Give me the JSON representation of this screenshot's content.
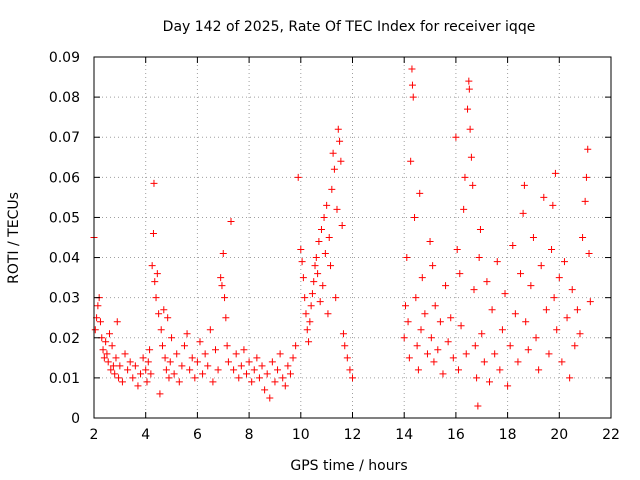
{
  "chart_data": {
    "type": "scatter",
    "title": "Day 142 of 2025, Rate Of TEC Index for receiver iqqe",
    "xlabel": "GPS time / hours",
    "ylabel": "ROTI / TECUs",
    "xlim": [
      2,
      22
    ],
    "ylim": [
      0,
      0.09
    ],
    "x_ticks": [
      2,
      4,
      6,
      8,
      10,
      12,
      14,
      16,
      18,
      20,
      22
    ],
    "x_tick_labels": [
      "2",
      "4",
      "6",
      "8",
      "10",
      "12",
      "14",
      "16",
      "18",
      "20",
      "22"
    ],
    "y_ticks": [
      0,
      0.01,
      0.02,
      0.03,
      0.04,
      0.05,
      0.06,
      0.07,
      0.08,
      0.09
    ],
    "y_tick_labels": [
      "0",
      "0.01",
      "0.02",
      "0.03",
      "0.04",
      "0.05",
      "0.06",
      "0.07",
      "0.08",
      "0.09"
    ],
    "grid": true,
    "marker": "+",
    "color": "#ff0000",
    "series": [
      {
        "name": "ROTI",
        "points": [
          [
            2.0,
            0.045
          ],
          [
            2.05,
            0.022
          ],
          [
            2.1,
            0.025
          ],
          [
            2.15,
            0.028
          ],
          [
            2.2,
            0.03
          ],
          [
            2.25,
            0.024
          ],
          [
            2.3,
            0.02
          ],
          [
            2.35,
            0.017
          ],
          [
            2.4,
            0.015
          ],
          [
            2.45,
            0.019
          ],
          [
            2.5,
            0.016
          ],
          [
            2.55,
            0.014
          ],
          [
            2.6,
            0.021
          ],
          [
            2.65,
            0.012
          ],
          [
            2.7,
            0.018
          ],
          [
            2.75,
            0.013
          ],
          [
            2.8,
            0.011
          ],
          [
            2.85,
            0.015
          ],
          [
            2.9,
            0.024
          ],
          [
            2.95,
            0.01
          ],
          [
            3.0,
            0.013
          ],
          [
            3.1,
            0.009
          ],
          [
            3.2,
            0.016
          ],
          [
            3.3,
            0.012
          ],
          [
            3.4,
            0.014
          ],
          [
            3.5,
            0.01
          ],
          [
            3.6,
            0.013
          ],
          [
            3.7,
            0.008
          ],
          [
            3.8,
            0.011
          ],
          [
            3.9,
            0.015
          ],
          [
            4.0,
            0.012
          ],
          [
            4.05,
            0.009
          ],
          [
            4.1,
            0.014
          ],
          [
            4.15,
            0.017
          ],
          [
            4.2,
            0.011
          ],
          [
            4.25,
            0.038
          ],
          [
            4.3,
            0.046
          ],
          [
            4.32,
            0.0585
          ],
          [
            4.35,
            0.034
          ],
          [
            4.4,
            0.03
          ],
          [
            4.45,
            0.036
          ],
          [
            4.5,
            0.026
          ],
          [
            4.55,
            0.006
          ],
          [
            4.6,
            0.022
          ],
          [
            4.65,
            0.018
          ],
          [
            4.7,
            0.027
          ],
          [
            4.75,
            0.015
          ],
          [
            4.8,
            0.012
          ],
          [
            4.85,
            0.025
          ],
          [
            4.9,
            0.01
          ],
          [
            4.95,
            0.014
          ],
          [
            5.0,
            0.02
          ],
          [
            5.1,
            0.011
          ],
          [
            5.2,
            0.016
          ],
          [
            5.3,
            0.009
          ],
          [
            5.4,
            0.013
          ],
          [
            5.5,
            0.018
          ],
          [
            5.6,
            0.021
          ],
          [
            5.7,
            0.012
          ],
          [
            5.8,
            0.015
          ],
          [
            5.9,
            0.01
          ],
          [
            6.0,
            0.014
          ],
          [
            6.1,
            0.019
          ],
          [
            6.2,
            0.011
          ],
          [
            6.3,
            0.016
          ],
          [
            6.4,
            0.013
          ],
          [
            6.5,
            0.022
          ],
          [
            6.6,
            0.009
          ],
          [
            6.7,
            0.017
          ],
          [
            6.8,
            0.012
          ],
          [
            6.9,
            0.035
          ],
          [
            6.95,
            0.033
          ],
          [
            7.0,
            0.041
          ],
          [
            7.05,
            0.03
          ],
          [
            7.1,
            0.025
          ],
          [
            7.15,
            0.018
          ],
          [
            7.2,
            0.014
          ],
          [
            7.3,
            0.049
          ],
          [
            7.4,
            0.012
          ],
          [
            7.5,
            0.016
          ],
          [
            7.6,
            0.01
          ],
          [
            7.7,
            0.013
          ],
          [
            7.8,
            0.017
          ],
          [
            7.9,
            0.011
          ],
          [
            8.0,
            0.014
          ],
          [
            8.1,
            0.009
          ],
          [
            8.2,
            0.012
          ],
          [
            8.3,
            0.015
          ],
          [
            8.4,
            0.01
          ],
          [
            8.5,
            0.013
          ],
          [
            8.6,
            0.007
          ],
          [
            8.7,
            0.011
          ],
          [
            8.8,
            0.005
          ],
          [
            8.9,
            0.014
          ],
          [
            9.0,
            0.009
          ],
          [
            9.1,
            0.012
          ],
          [
            9.2,
            0.016
          ],
          [
            9.3,
            0.01
          ],
          [
            9.4,
            0.008
          ],
          [
            9.5,
            0.013
          ],
          [
            9.6,
            0.011
          ],
          [
            9.7,
            0.015
          ],
          [
            9.8,
            0.018
          ],
          [
            9.9,
            0.06
          ],
          [
            10.0,
            0.042
          ],
          [
            10.05,
            0.039
          ],
          [
            10.1,
            0.035
          ],
          [
            10.15,
            0.03
          ],
          [
            10.2,
            0.026
          ],
          [
            10.25,
            0.022
          ],
          [
            10.3,
            0.019
          ],
          [
            10.35,
            0.024
          ],
          [
            10.4,
            0.028
          ],
          [
            10.45,
            0.031
          ],
          [
            10.5,
            0.034
          ],
          [
            10.55,
            0.038
          ],
          [
            10.6,
            0.04
          ],
          [
            10.65,
            0.036
          ],
          [
            10.7,
            0.044
          ],
          [
            10.75,
            0.029
          ],
          [
            10.8,
            0.047
          ],
          [
            10.85,
            0.033
          ],
          [
            10.9,
            0.05
          ],
          [
            10.95,
            0.041
          ],
          [
            11.0,
            0.053
          ],
          [
            11.05,
            0.026
          ],
          [
            11.1,
            0.045
          ],
          [
            11.15,
            0.038
          ],
          [
            11.2,
            0.057
          ],
          [
            11.25,
            0.066
          ],
          [
            11.3,
            0.062
          ],
          [
            11.35,
            0.03
          ],
          [
            11.4,
            0.052
          ],
          [
            11.45,
            0.072
          ],
          [
            11.5,
            0.069
          ],
          [
            11.55,
            0.064
          ],
          [
            11.6,
            0.048
          ],
          [
            11.65,
            0.021
          ],
          [
            11.7,
            0.018
          ],
          [
            11.8,
            0.015
          ],
          [
            11.9,
            0.012
          ],
          [
            12.0,
            0.01
          ],
          [
            14.0,
            0.02
          ],
          [
            14.05,
            0.028
          ],
          [
            14.1,
            0.04
          ],
          [
            14.15,
            0.024
          ],
          [
            14.2,
            0.015
          ],
          [
            14.25,
            0.064
          ],
          [
            14.3,
            0.087
          ],
          [
            14.32,
            0.083
          ],
          [
            14.35,
            0.08
          ],
          [
            14.4,
            0.05
          ],
          [
            14.45,
            0.03
          ],
          [
            14.5,
            0.018
          ],
          [
            14.55,
            0.012
          ],
          [
            14.6,
            0.056
          ],
          [
            14.65,
            0.022
          ],
          [
            14.7,
            0.035
          ],
          [
            14.8,
            0.026
          ],
          [
            14.9,
            0.016
          ],
          [
            15.0,
            0.044
          ],
          [
            15.05,
            0.02
          ],
          [
            15.1,
            0.038
          ],
          [
            15.15,
            0.014
          ],
          [
            15.2,
            0.028
          ],
          [
            15.3,
            0.017
          ],
          [
            15.4,
            0.024
          ],
          [
            15.5,
            0.011
          ],
          [
            15.6,
            0.033
          ],
          [
            15.7,
            0.019
          ],
          [
            15.8,
            0.025
          ],
          [
            15.9,
            0.015
          ],
          [
            16.0,
            0.07
          ],
          [
            16.05,
            0.042
          ],
          [
            16.1,
            0.012
          ],
          [
            16.15,
            0.036
          ],
          [
            16.2,
            0.023
          ],
          [
            16.3,
            0.052
          ],
          [
            16.35,
            0.06
          ],
          [
            16.4,
            0.016
          ],
          [
            16.45,
            0.077
          ],
          [
            16.5,
            0.084
          ],
          [
            16.52,
            0.082
          ],
          [
            16.55,
            0.072
          ],
          [
            16.6,
            0.065
          ],
          [
            16.65,
            0.058
          ],
          [
            16.7,
            0.032
          ],
          [
            16.75,
            0.018
          ],
          [
            16.8,
            0.01
          ],
          [
            16.85,
            0.003
          ],
          [
            16.9,
            0.04
          ],
          [
            16.95,
            0.047
          ],
          [
            17.0,
            0.021
          ],
          [
            17.1,
            0.014
          ],
          [
            17.2,
            0.034
          ],
          [
            17.3,
            0.009
          ],
          [
            17.4,
            0.027
          ],
          [
            17.5,
            0.016
          ],
          [
            17.6,
            0.039
          ],
          [
            17.7,
            0.012
          ],
          [
            17.8,
            0.022
          ],
          [
            17.9,
            0.031
          ],
          [
            18.0,
            0.008
          ],
          [
            18.1,
            0.018
          ],
          [
            18.2,
            0.043
          ],
          [
            18.3,
            0.026
          ],
          [
            18.4,
            0.014
          ],
          [
            18.5,
            0.036
          ],
          [
            18.6,
            0.051
          ],
          [
            18.65,
            0.058
          ],
          [
            18.7,
            0.024
          ],
          [
            18.8,
            0.017
          ],
          [
            18.9,
            0.033
          ],
          [
            19.0,
            0.045
          ],
          [
            19.1,
            0.02
          ],
          [
            19.2,
            0.012
          ],
          [
            19.3,
            0.038
          ],
          [
            19.4,
            0.055
          ],
          [
            19.5,
            0.027
          ],
          [
            19.6,
            0.016
          ],
          [
            19.7,
            0.042
          ],
          [
            19.75,
            0.053
          ],
          [
            19.8,
            0.03
          ],
          [
            19.85,
            0.061
          ],
          [
            19.9,
            0.022
          ],
          [
            20.0,
            0.035
          ],
          [
            20.1,
            0.014
          ],
          [
            20.2,
            0.039
          ],
          [
            20.3,
            0.025
          ],
          [
            20.4,
            0.01
          ],
          [
            20.5,
            0.032
          ],
          [
            20.6,
            0.018
          ],
          [
            20.7,
            0.027
          ],
          [
            20.8,
            0.021
          ],
          [
            20.9,
            0.045
          ],
          [
            21.0,
            0.054
          ],
          [
            21.05,
            0.06
          ],
          [
            21.1,
            0.067
          ],
          [
            21.15,
            0.041
          ],
          [
            21.2,
            0.029
          ]
        ]
      }
    ]
  }
}
